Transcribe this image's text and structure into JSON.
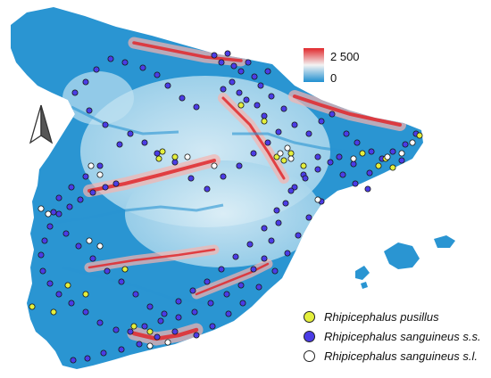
{
  "colors": {
    "elev_low": "#1f8fd0",
    "elev_mid": "#cfe7f2",
    "elev_high": "#e0282c",
    "pusillus": "#e4ef3c",
    "sanguineus_ss": "#4b3ce6",
    "sanguineus_sl": "#ffffff"
  },
  "elevation_scale": {
    "max_label": "2 500",
    "min_label": "0"
  },
  "north_arrow_icon": "north-arrow-icon",
  "legend": [
    {
      "label": "Rhipicephalus pusillus",
      "color_key": "pusillus"
    },
    {
      "label": "Rhipicephalus sanguineus s.s.",
      "color_key": "sanguineus_ss"
    },
    {
      "label": "Rhipicephalus sanguineus s.l.",
      "color_key": "sanguineus_sl"
    }
  ]
}
